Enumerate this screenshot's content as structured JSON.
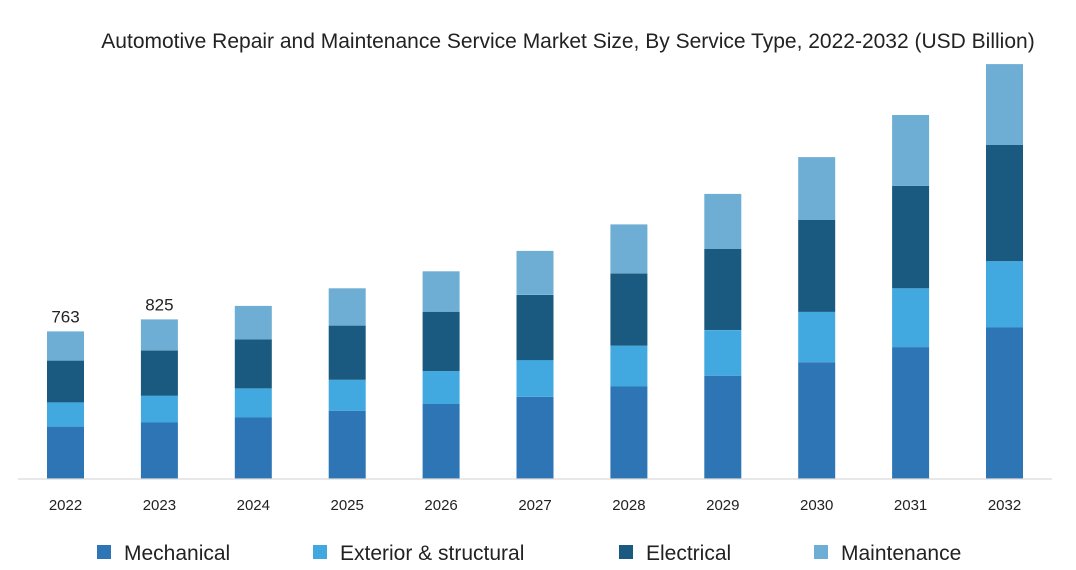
{
  "chart_data": {
    "type": "bar",
    "stacked": true,
    "title": "Automotive Repair and Maintenance Service Market Size, By Service Type, 2022-2032 (USD Billion)",
    "xlabel": "",
    "ylabel": "",
    "ylim": [
      0,
      2130
    ],
    "grid": false,
    "legend_position": "bottom",
    "categories": [
      "2022",
      "2023",
      "2024",
      "2025",
      "2026",
      "2027",
      "2028",
      "2029",
      "2030",
      "2031",
      "2032"
    ],
    "series": [
      {
        "name": "Mechanical",
        "color": "#2e75b6",
        "values": [
          271,
          292,
          318,
          353,
          388,
          425,
          478,
          534,
          604,
          682,
          783
        ]
      },
      {
        "name": "Exterior & structural",
        "color": "#41a9e0",
        "values": [
          125,
          139,
          150,
          160,
          170,
          190,
          211,
          236,
          260,
          304,
          343
        ]
      },
      {
        "name": "Electrical",
        "color": "#1a5a80",
        "values": [
          216,
          234,
          254,
          280,
          307,
          337,
          374,
          419,
          475,
          530,
          601
        ]
      },
      {
        "name": "Maintenance",
        "color": "#6faed4",
        "values": [
          151,
          160,
          173,
          193,
          209,
          227,
          253,
          285,
          325,
          366,
          418
        ]
      }
    ],
    "data_labels": [
      {
        "category": "2022",
        "text": "763"
      },
      {
        "category": "2023",
        "text": "825"
      }
    ]
  }
}
